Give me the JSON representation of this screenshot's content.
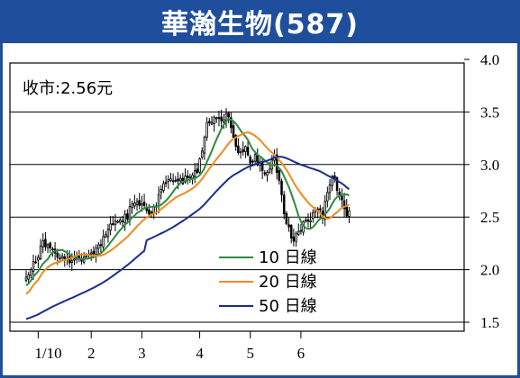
{
  "header": {
    "title": "華瀚生物(587)"
  },
  "chart_data": {
    "type": "candlestick",
    "title": "華瀚生物(587)",
    "annotation": "收市:2.56元",
    "yticks": [
      "4.0",
      "3.5",
      "3.0",
      "2.5",
      "2.0",
      "1.5"
    ],
    "ylim": [
      1.5,
      4.0
    ],
    "xlim": [
      0,
      166
    ],
    "xticks": [
      {
        "label": "1/10",
        "x": 5
      },
      {
        "label": "2",
        "x": 27
      },
      {
        "label": "3",
        "x": 48
      },
      {
        "label": "4",
        "x": 72
      },
      {
        "label": "5",
        "x": 93
      },
      {
        "label": "6",
        "x": 114
      }
    ],
    "grid_y": [
      1.5,
      2.0,
      2.5,
      3.0,
      3.5,
      4.0
    ],
    "close_anchors": [
      [
        0,
        1.92
      ],
      [
        3,
        2.04
      ],
      [
        5,
        2.14
      ],
      [
        7,
        2.24
      ],
      [
        9,
        2.2
      ],
      [
        12,
        2.16
      ],
      [
        15,
        2.1
      ],
      [
        18,
        2.06
      ],
      [
        21,
        2.1
      ],
      [
        24,
        2.12
      ],
      [
        27,
        2.15
      ],
      [
        30,
        2.22
      ],
      [
        33,
        2.36
      ],
      [
        36,
        2.44
      ],
      [
        39,
        2.44
      ],
      [
        42,
        2.52
      ],
      [
        45,
        2.66
      ],
      [
        48,
        2.6
      ],
      [
        51,
        2.54
      ],
      [
        54,
        2.63
      ],
      [
        57,
        2.8
      ],
      [
        60,
        2.87
      ],
      [
        63,
        2.83
      ],
      [
        66,
        2.86
      ],
      [
        69,
        2.9
      ],
      [
        71,
        2.95
      ],
      [
        73,
        3.1
      ],
      [
        75,
        3.4
      ],
      [
        78,
        3.43
      ],
      [
        81,
        3.45
      ],
      [
        83,
        3.47
      ],
      [
        85,
        3.38
      ],
      [
        87,
        3.17
      ],
      [
        89,
        3.1
      ],
      [
        91,
        3.15
      ],
      [
        93,
        3.04
      ],
      [
        95,
        3.07
      ],
      [
        97,
        3.0
      ],
      [
        99,
        2.92
      ],
      [
        101,
        2.98
      ],
      [
        103,
        3.07
      ],
      [
        105,
        2.85
      ],
      [
        107,
        2.55
      ],
      [
        109,
        2.4
      ],
      [
        111,
        2.25
      ],
      [
        113,
        2.38
      ],
      [
        115,
        2.42
      ],
      [
        117,
        2.45
      ],
      [
        119,
        2.53
      ],
      [
        121,
        2.6
      ],
      [
        123,
        2.5
      ],
      [
        125,
        2.72
      ],
      [
        127,
        2.9
      ],
      [
        129,
        2.77
      ],
      [
        131,
        2.65
      ],
      [
        133,
        2.55
      ],
      [
        134,
        2.56
      ]
    ],
    "seed": 587,
    "series": [
      {
        "name": "10日線",
        "color": "#2e8b3e",
        "period": 10
      },
      {
        "name": "20日線",
        "color": "#f08a1e",
        "period": 20
      },
      {
        "name": "50日線",
        "color": "#1a2f8a",
        "period": 50
      }
    ],
    "ma50_start": 1.53,
    "legend_position": "bottom-center",
    "grid": true
  }
}
